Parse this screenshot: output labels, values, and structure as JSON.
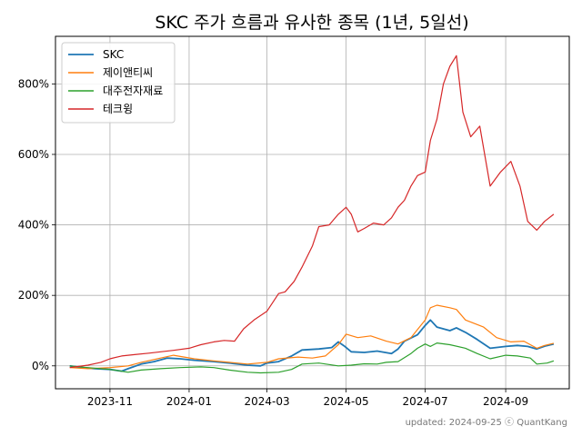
{
  "chart_data": {
    "type": "line",
    "title": "SKC 주가 흐름과 유사한 종목 (1년, 5일선)",
    "footer": "updated: 2024-09-25 ⓒ QuantKang",
    "xlabel": "",
    "ylabel": "",
    "x_range": [
      "2023-09-20",
      "2024-10-20"
    ],
    "ylim": [
      -65,
      935
    ],
    "grid": true,
    "legend_position": "top-left",
    "x_ticks": [
      {
        "date": "2023-11-01",
        "label": "2023-11"
      },
      {
        "date": "2024-01-01",
        "label": "2024-01"
      },
      {
        "date": "2024-03-01",
        "label": "2024-03"
      },
      {
        "date": "2024-05-01",
        "label": "2024-05"
      },
      {
        "date": "2024-07-01",
        "label": "2024-07"
      },
      {
        "date": "2024-09-01",
        "label": "2024-09"
      }
    ],
    "y_ticks": [
      {
        "value": 0,
        "label": "0%"
      },
      {
        "value": 200,
        "label": "200%"
      },
      {
        "value": 400,
        "label": "400%"
      },
      {
        "value": 600,
        "label": "600%"
      },
      {
        "value": 800,
        "label": "800%"
      }
    ],
    "series": [
      {
        "name": "SKC",
        "color": "#1f77b4",
        "points": [
          [
            "2023-10-01",
            0
          ],
          [
            "2023-10-10",
            -5
          ],
          [
            "2023-10-20",
            -8
          ],
          [
            "2023-11-01",
            -10
          ],
          [
            "2023-11-10",
            -15
          ],
          [
            "2023-11-15",
            -8
          ],
          [
            "2023-11-25",
            5
          ],
          [
            "2023-12-05",
            12
          ],
          [
            "2023-12-15",
            22
          ],
          [
            "2023-12-25",
            20
          ],
          [
            "2024-01-05",
            16
          ],
          [
            "2024-01-20",
            12
          ],
          [
            "2024-02-01",
            8
          ],
          [
            "2024-02-15",
            2
          ],
          [
            "2024-02-25",
            0
          ],
          [
            "2024-03-01",
            8
          ],
          [
            "2024-03-10",
            12
          ],
          [
            "2024-03-20",
            28
          ],
          [
            "2024-03-28",
            45
          ],
          [
            "2024-04-10",
            48
          ],
          [
            "2024-04-20",
            52
          ],
          [
            "2024-04-25",
            68
          ],
          [
            "2024-04-30",
            55
          ],
          [
            "2024-05-05",
            40
          ],
          [
            "2024-05-15",
            38
          ],
          [
            "2024-05-25",
            42
          ],
          [
            "2024-06-05",
            35
          ],
          [
            "2024-06-10",
            48
          ],
          [
            "2024-06-15",
            70
          ],
          [
            "2024-06-25",
            88
          ],
          [
            "2024-07-01",
            115
          ],
          [
            "2024-07-05",
            130
          ],
          [
            "2024-07-10",
            110
          ],
          [
            "2024-07-20",
            100
          ],
          [
            "2024-07-25",
            108
          ],
          [
            "2024-08-01",
            95
          ],
          [
            "2024-08-10",
            75
          ],
          [
            "2024-08-20",
            50
          ],
          [
            "2024-09-01",
            55
          ],
          [
            "2024-09-10",
            58
          ],
          [
            "2024-09-18",
            55
          ],
          [
            "2024-09-25",
            48
          ],
          [
            "2024-10-01",
            56
          ],
          [
            "2024-10-08",
            62
          ]
        ]
      },
      {
        "name": "제이앤티씨",
        "color": "#ff7f0e",
        "points": [
          [
            "2023-10-01",
            -5
          ],
          [
            "2023-10-15",
            -8
          ],
          [
            "2023-11-01",
            -5
          ],
          [
            "2023-11-15",
            0
          ],
          [
            "2023-11-25",
            10
          ],
          [
            "2023-12-10",
            22
          ],
          [
            "2023-12-20",
            30
          ],
          [
            "2024-01-05",
            20
          ],
          [
            "2024-01-20",
            14
          ],
          [
            "2024-02-01",
            10
          ],
          [
            "2024-02-15",
            5
          ],
          [
            "2024-03-01",
            10
          ],
          [
            "2024-03-10",
            20
          ],
          [
            "2024-03-25",
            25
          ],
          [
            "2024-04-05",
            22
          ],
          [
            "2024-04-15",
            28
          ],
          [
            "2024-04-25",
            60
          ],
          [
            "2024-05-01",
            90
          ],
          [
            "2024-05-10",
            80
          ],
          [
            "2024-05-20",
            85
          ],
          [
            "2024-06-01",
            70
          ],
          [
            "2024-06-10",
            62
          ],
          [
            "2024-06-20",
            80
          ],
          [
            "2024-07-01",
            130
          ],
          [
            "2024-07-05",
            165
          ],
          [
            "2024-07-10",
            172
          ],
          [
            "2024-07-20",
            165
          ],
          [
            "2024-07-25",
            160
          ],
          [
            "2024-08-01",
            130
          ],
          [
            "2024-08-15",
            110
          ],
          [
            "2024-08-25",
            80
          ],
          [
            "2024-09-05",
            68
          ],
          [
            "2024-09-15",
            70
          ],
          [
            "2024-09-25",
            50
          ],
          [
            "2024-10-01",
            58
          ],
          [
            "2024-10-08",
            64
          ]
        ]
      },
      {
        "name": "대주전자재료",
        "color": "#2ca02c",
        "points": [
          [
            "2023-10-01",
            0
          ],
          [
            "2023-10-15",
            -5
          ],
          [
            "2023-11-01",
            -10
          ],
          [
            "2023-11-15",
            -18
          ],
          [
            "2023-11-25",
            -12
          ],
          [
            "2023-12-10",
            -8
          ],
          [
            "2023-12-25",
            -5
          ],
          [
            "2024-01-10",
            -3
          ],
          [
            "2024-01-20",
            -5
          ],
          [
            "2024-02-01",
            -12
          ],
          [
            "2024-02-15",
            -18
          ],
          [
            "2024-02-25",
            -20
          ],
          [
            "2024-03-10",
            -18
          ],
          [
            "2024-03-20",
            -10
          ],
          [
            "2024-03-28",
            5
          ],
          [
            "2024-04-10",
            8
          ],
          [
            "2024-04-25",
            0
          ],
          [
            "2024-05-05",
            2
          ],
          [
            "2024-05-15",
            6
          ],
          [
            "2024-05-25",
            5
          ],
          [
            "2024-06-01",
            10
          ],
          [
            "2024-06-10",
            12
          ],
          [
            "2024-06-20",
            35
          ],
          [
            "2024-06-25",
            50
          ],
          [
            "2024-07-01",
            62
          ],
          [
            "2024-07-05",
            55
          ],
          [
            "2024-07-10",
            65
          ],
          [
            "2024-07-20",
            60
          ],
          [
            "2024-08-01",
            50
          ],
          [
            "2024-08-10",
            35
          ],
          [
            "2024-08-20",
            20
          ],
          [
            "2024-09-01",
            30
          ],
          [
            "2024-09-10",
            28
          ],
          [
            "2024-09-20",
            22
          ],
          [
            "2024-09-25",
            5
          ],
          [
            "2024-10-03",
            8
          ],
          [
            "2024-10-08",
            14
          ]
        ]
      },
      {
        "name": "테크윙",
        "color": "#d62728",
        "points": [
          [
            "2023-10-01",
            -5
          ],
          [
            "2023-10-15",
            2
          ],
          [
            "2023-10-25",
            10
          ],
          [
            "2023-11-01",
            20
          ],
          [
            "2023-11-10",
            28
          ],
          [
            "2023-11-20",
            32
          ],
          [
            "2023-12-01",
            36
          ],
          [
            "2023-12-10",
            40
          ],
          [
            "2023-12-20",
            44
          ],
          [
            "2024-01-01",
            50
          ],
          [
            "2024-01-10",
            60
          ],
          [
            "2024-01-20",
            68
          ],
          [
            "2024-01-28",
            72
          ],
          [
            "2024-02-05",
            70
          ],
          [
            "2024-02-12",
            105
          ],
          [
            "2024-02-20",
            130
          ],
          [
            "2024-03-01",
            155
          ],
          [
            "2024-03-10",
            205
          ],
          [
            "2024-03-15",
            210
          ],
          [
            "2024-03-22",
            240
          ],
          [
            "2024-03-28",
            280
          ],
          [
            "2024-04-05",
            340
          ],
          [
            "2024-04-10",
            395
          ],
          [
            "2024-04-18",
            400
          ],
          [
            "2024-04-25",
            430
          ],
          [
            "2024-05-01",
            450
          ],
          [
            "2024-05-05",
            430
          ],
          [
            "2024-05-10",
            380
          ],
          [
            "2024-05-15",
            390
          ],
          [
            "2024-05-22",
            405
          ],
          [
            "2024-05-30",
            400
          ],
          [
            "2024-06-05",
            420
          ],
          [
            "2024-06-10",
            450
          ],
          [
            "2024-06-15",
            470
          ],
          [
            "2024-06-20",
            510
          ],
          [
            "2024-06-25",
            540
          ],
          [
            "2024-07-01",
            550
          ],
          [
            "2024-07-05",
            640
          ],
          [
            "2024-07-10",
            700
          ],
          [
            "2024-07-15",
            800
          ],
          [
            "2024-07-20",
            850
          ],
          [
            "2024-07-25",
            880
          ],
          [
            "2024-07-30",
            720
          ],
          [
            "2024-08-05",
            650
          ],
          [
            "2024-08-12",
            680
          ],
          [
            "2024-08-20",
            510
          ],
          [
            "2024-08-28",
            550
          ],
          [
            "2024-09-05",
            580
          ],
          [
            "2024-09-12",
            510
          ],
          [
            "2024-09-18",
            410
          ],
          [
            "2024-09-25",
            385
          ],
          [
            "2024-10-01",
            410
          ],
          [
            "2024-10-08",
            430
          ]
        ]
      }
    ]
  }
}
